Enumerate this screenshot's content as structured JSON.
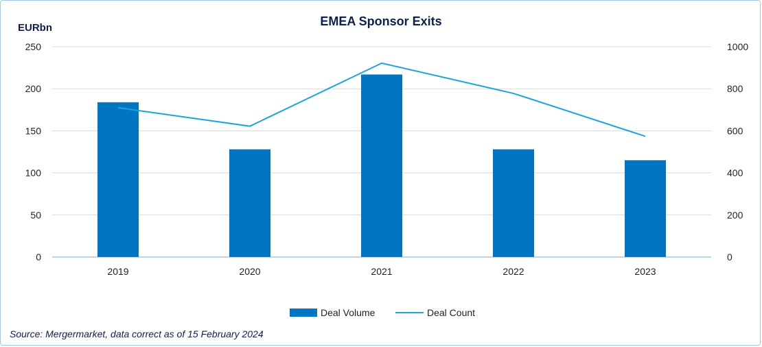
{
  "chart_data": {
    "type": "bar",
    "title": "EMEA Sponsor Exits",
    "ylabel": "EURbn",
    "y2label": "",
    "categories": [
      "2019",
      "2020",
      "2021",
      "2022",
      "2023"
    ],
    "series": [
      {
        "name": "Deal Volume",
        "type": "bar",
        "axis": "left",
        "values": [
          184,
          128,
          217,
          128,
          115
        ],
        "color": "#0075c2"
      },
      {
        "name": "Deal Count",
        "type": "line",
        "axis": "right",
        "values": [
          710,
          622,
          922,
          778,
          574
        ],
        "color": "#1aa3e0"
      }
    ],
    "ylim": [
      0,
      250
    ],
    "y2lim": [
      0,
      1000
    ],
    "yticks": [
      "0",
      "50",
      "100",
      "150",
      "200",
      "250"
    ],
    "y2ticks": [
      "0",
      "200",
      "400",
      "600",
      "800",
      "1000"
    ],
    "grid": true,
    "legend": "bottom-center"
  },
  "source": "Source: Mergermarket, data correct as of 15 February 2024"
}
